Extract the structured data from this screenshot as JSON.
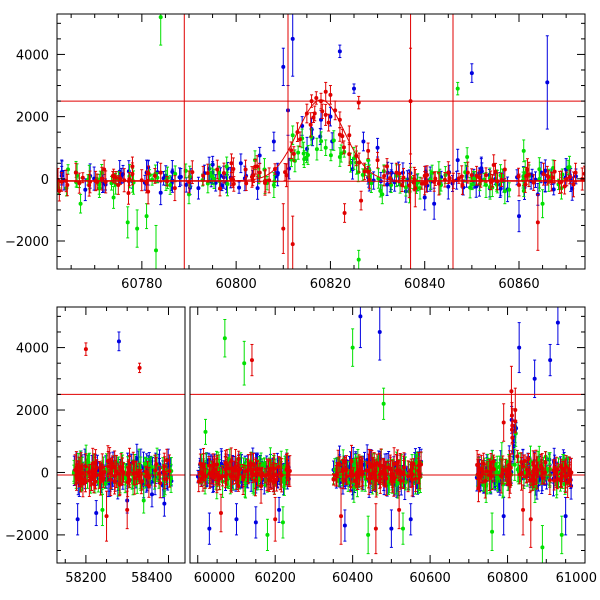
{
  "chart_data": [
    {
      "type": "scatter",
      "panel": "top",
      "title": "",
      "xlabel": "",
      "ylabel": "",
      "xlim": [
        60762,
        60874
      ],
      "ylim": [
        -2900,
        5300
      ],
      "grid": false,
      "x_tick_labels": [
        "60780",
        "60800",
        "60820",
        "60840",
        "60860"
      ],
      "x_tick_values": [
        60780,
        60800,
        60820,
        60840,
        60860
      ],
      "y_tick_labels": [
        "−2000",
        "0",
        "2000",
        "4000"
      ],
      "y_tick_values": [
        -2000,
        0,
        2000,
        4000
      ],
      "reference_lines": {
        "horizontal": [
          2500,
          -80
        ],
        "vertical": [
          60789,
          60811,
          60837,
          60846
        ],
        "color": "#e00000"
      },
      "series": [
        {
          "color": "#0000e0",
          "points": [
            [
              60763,
              100,
              300
            ],
            [
              60768,
              -350,
              350
            ],
            [
              60776,
              150,
              280
            ],
            [
              60781,
              200,
              400
            ],
            [
              60784,
              -450,
              380
            ],
            [
              60788,
              50,
              300
            ],
            [
              60792,
              -300,
              350
            ],
            [
              60795,
              200,
              350
            ],
            [
              60798,
              -150,
              300
            ],
            [
              60801,
              500,
              300
            ],
            [
              60805,
              750,
              260
            ],
            [
              60808,
              1200,
              300
            ],
            [
              60810,
              3600,
              600
            ],
            [
              60811,
              2200,
              800
            ],
            [
              60812,
              4500,
              1200
            ],
            [
              60814,
              1700,
              300
            ],
            [
              60816,
              1600,
              350
            ],
            [
              60818,
              1900,
              300
            ],
            [
              60820,
              2000,
              300
            ],
            [
              60822,
              4100,
              200
            ],
            [
              60825,
              2900,
              150
            ],
            [
              60827,
              1200,
              300
            ],
            [
              60830,
              1000,
              300
            ],
            [
              60833,
              200,
              300
            ],
            [
              60836,
              -400,
              350
            ],
            [
              60840,
              -600,
              400
            ],
            [
              60842,
              -800,
              500
            ],
            [
              60845,
              -250,
              400
            ],
            [
              60847,
              600,
              350
            ],
            [
              60850,
              3400,
              300
            ],
            [
              60852,
              300,
              350
            ],
            [
              60856,
              -200,
              400
            ],
            [
              60860,
              -1200,
              500
            ],
            [
              60864,
              -500,
              350
            ],
            [
              60866,
              3100,
              1500
            ],
            [
              60870,
              300,
              350
            ]
          ]
        },
        {
          "color": "#00e000",
          "points": [
            [
              60764,
              -300,
              250
            ],
            [
              60767,
              -800,
              300
            ],
            [
              60771,
              -300,
              300
            ],
            [
              60774,
              -600,
              350
            ],
            [
              60777,
              -1400,
              500
            ],
            [
              60779,
              -1600,
              600
            ],
            [
              60781,
              -1200,
              400
            ],
            [
              60783,
              -2300,
              800
            ],
            [
              60784,
              5200,
              900
            ],
            [
              60786,
              -200,
              300
            ],
            [
              60790,
              -500,
              300
            ],
            [
              60794,
              -150,
              300
            ],
            [
              60798,
              400,
              300
            ],
            [
              60804,
              600,
              300
            ],
            [
              60806,
              300,
              350
            ],
            [
              60808,
              -200,
              400
            ],
            [
              60812,
              1400,
              300
            ],
            [
              60814,
              1300,
              300
            ],
            [
              60819,
              1000,
              250
            ],
            [
              60822,
              700,
              300
            ],
            [
              60826,
              -2600,
              300
            ],
            [
              60828,
              600,
              300
            ],
            [
              60831,
              -500,
              300
            ],
            [
              60834,
              100,
              350
            ],
            [
              60839,
              -300,
              350
            ],
            [
              60843,
              200,
              350
            ],
            [
              60847,
              2900,
              200
            ],
            [
              60849,
              700,
              300
            ],
            [
              60853,
              -200,
              400
            ],
            [
              60857,
              -400,
              400
            ],
            [
              60861,
              900,
              350
            ],
            [
              60865,
              -800,
              450
            ],
            [
              60869,
              -300,
              350
            ]
          ]
        },
        {
          "color": "#e00000",
          "points": [
            [
              60763,
              -100,
              300
            ],
            [
              60766,
              200,
              300
            ],
            [
              60769,
              -100,
              350
            ],
            [
              60772,
              300,
              300
            ],
            [
              60775,
              -200,
              300
            ],
            [
              60778,
              400,
              300
            ],
            [
              60781,
              -100,
              350
            ],
            [
              60784,
              200,
              300
            ],
            [
              60787,
              -300,
              400
            ],
            [
              60790,
              -100,
              350
            ],
            [
              60793,
              100,
              300
            ],
            [
              60796,
              300,
              300
            ],
            [
              60799,
              500,
              300
            ],
            [
              60802,
              300,
              300
            ],
            [
              60805,
              200,
              300
            ],
            [
              60807,
              -50,
              400
            ],
            [
              60810,
              -1600,
              800
            ],
            [
              60812,
              -2100,
              900
            ],
            [
              60813,
              1500,
              300
            ],
            [
              60815,
              2100,
              300
            ],
            [
              60816,
              2500,
              200
            ],
            [
              60817,
              2600,
              200
            ],
            [
              60818,
              2500,
              250
            ],
            [
              60819,
              2800,
              300
            ],
            [
              60820,
              2700,
              300
            ],
            [
              60821,
              2200,
              300
            ],
            [
              60822,
              1900,
              250
            ],
            [
              60823,
              -1100,
              300
            ],
            [
              60824,
              1400,
              300
            ],
            [
              60826,
              2450,
              200
            ],
            [
              60826.5,
              -700,
              300
            ],
            [
              60828,
              900,
              250
            ],
            [
              60830,
              600,
              250
            ],
            [
              60832,
              400,
              250
            ],
            [
              60834,
              200,
              300
            ],
            [
              60837,
              2500,
              1700
            ],
            [
              60838,
              -300,
              600
            ],
            [
              60840,
              100,
              300
            ],
            [
              60842,
              -100,
              300
            ],
            [
              60845,
              200,
              350
            ],
            [
              60848,
              -200,
              300
            ],
            [
              60851,
              100,
              300
            ],
            [
              60854,
              -50,
              300
            ],
            [
              60857,
              300,
              300
            ],
            [
              60860,
              -200,
              350
            ],
            [
              60864,
              -1400,
              900
            ],
            [
              60866,
              100,
              300
            ],
            [
              60869,
              -100,
              350
            ],
            [
              60872,
              200,
              300
            ]
          ]
        }
      ]
    },
    {
      "type": "scatter",
      "panel": "bottom",
      "title": "",
      "xlabel": "",
      "ylabel": "",
      "xlim": [
        58130,
        61000
      ],
      "ylim": [
        -2900,
        5300
      ],
      "axis_break_between": [
        58440,
        59980
      ],
      "grid": false,
      "x_tick_labels": [
        "58200",
        "58400",
        "60000",
        "60200",
        "60400",
        "60600",
        "60800",
        "61000"
      ],
      "x_tick_values": [
        58200,
        58400,
        60000,
        60200,
        60400,
        60600,
        60800,
        61000
      ],
      "y_tick_labels": [
        "−2000",
        "0",
        "2000",
        "4000"
      ],
      "y_tick_values": [
        -2000,
        0,
        2000,
        4000
      ],
      "reference_lines": {
        "horizontal": [
          2500,
          -80
        ],
        "color": "#e00000"
      },
      "season_ranges": [
        [
          58170,
          58410
        ],
        [
          60000,
          60240
        ],
        [
          60350,
          60580
        ],
        [
          60720,
          60965
        ]
      ],
      "series": [
        {
          "color": "#0000e0",
          "points": [
            [
              58180,
              -1500,
              500
            ],
            [
              58225,
              -1300,
              400
            ],
            [
              58280,
              4200,
              300
            ],
            [
              58300,
              -900,
              400
            ],
            [
              58360,
              -700,
              400
            ],
            [
              58390,
              -1000,
              400
            ],
            [
              60030,
              -1800,
              500
            ],
            [
              60100,
              -1500,
              500
            ],
            [
              60150,
              -1600,
              500
            ],
            [
              60210,
              -1200,
              400
            ],
            [
              60380,
              -1700,
              500
            ],
            [
              60420,
              5000,
              1000
            ],
            [
              60470,
              4500,
              900
            ],
            [
              60500,
              -1800,
              600
            ],
            [
              60550,
              -1500,
              500
            ],
            [
              60790,
              -1400,
              600
            ],
            [
              60830,
              4000,
              800
            ],
            [
              60870,
              3000,
              600
            ],
            [
              60910,
              3600,
              500
            ],
            [
              60930,
              4800,
              700
            ],
            [
              60950,
              -1400,
              600
            ]
          ]
        },
        {
          "color": "#00e000",
          "points": [
            [
              58240,
              -1200,
              500
            ],
            [
              58340,
              -900,
              400
            ],
            [
              60020,
              1300,
              400
            ],
            [
              60070,
              4300,
              600
            ],
            [
              60120,
              3500,
              700
            ],
            [
              60180,
              -2000,
              500
            ],
            [
              60220,
              -1600,
              500
            ],
            [
              60400,
              4000,
              600
            ],
            [
              60440,
              -2000,
              600
            ],
            [
              60480,
              2200,
              500
            ],
            [
              60530,
              -1800,
              500
            ],
            [
              60760,
              -1900,
              600
            ],
            [
              60890,
              -2400,
              700
            ],
            [
              60940,
              -2000,
              600
            ]
          ]
        },
        {
          "color": "#e00000",
          "points": [
            [
              58200,
              3950,
              200
            ],
            [
              58250,
              -1400,
              800
            ],
            [
              58330,
              3350,
              150
            ],
            [
              58300,
              -1200,
              600
            ],
            [
              60060,
              -1300,
              600
            ],
            [
              60140,
              3600,
              500
            ],
            [
              60200,
              -1500,
              700
            ],
            [
              60370,
              -1400,
              900
            ],
            [
              60460,
              -1800,
              800
            ],
            [
              60520,
              -1200,
              600
            ],
            [
              60790,
              1600,
              600
            ],
            [
              60810,
              2600,
              800
            ],
            [
              60820,
              2000,
              700
            ],
            [
              60840,
              -1200,
              800
            ],
            [
              60860,
              -1500,
              900
            ]
          ]
        }
      ]
    }
  ]
}
